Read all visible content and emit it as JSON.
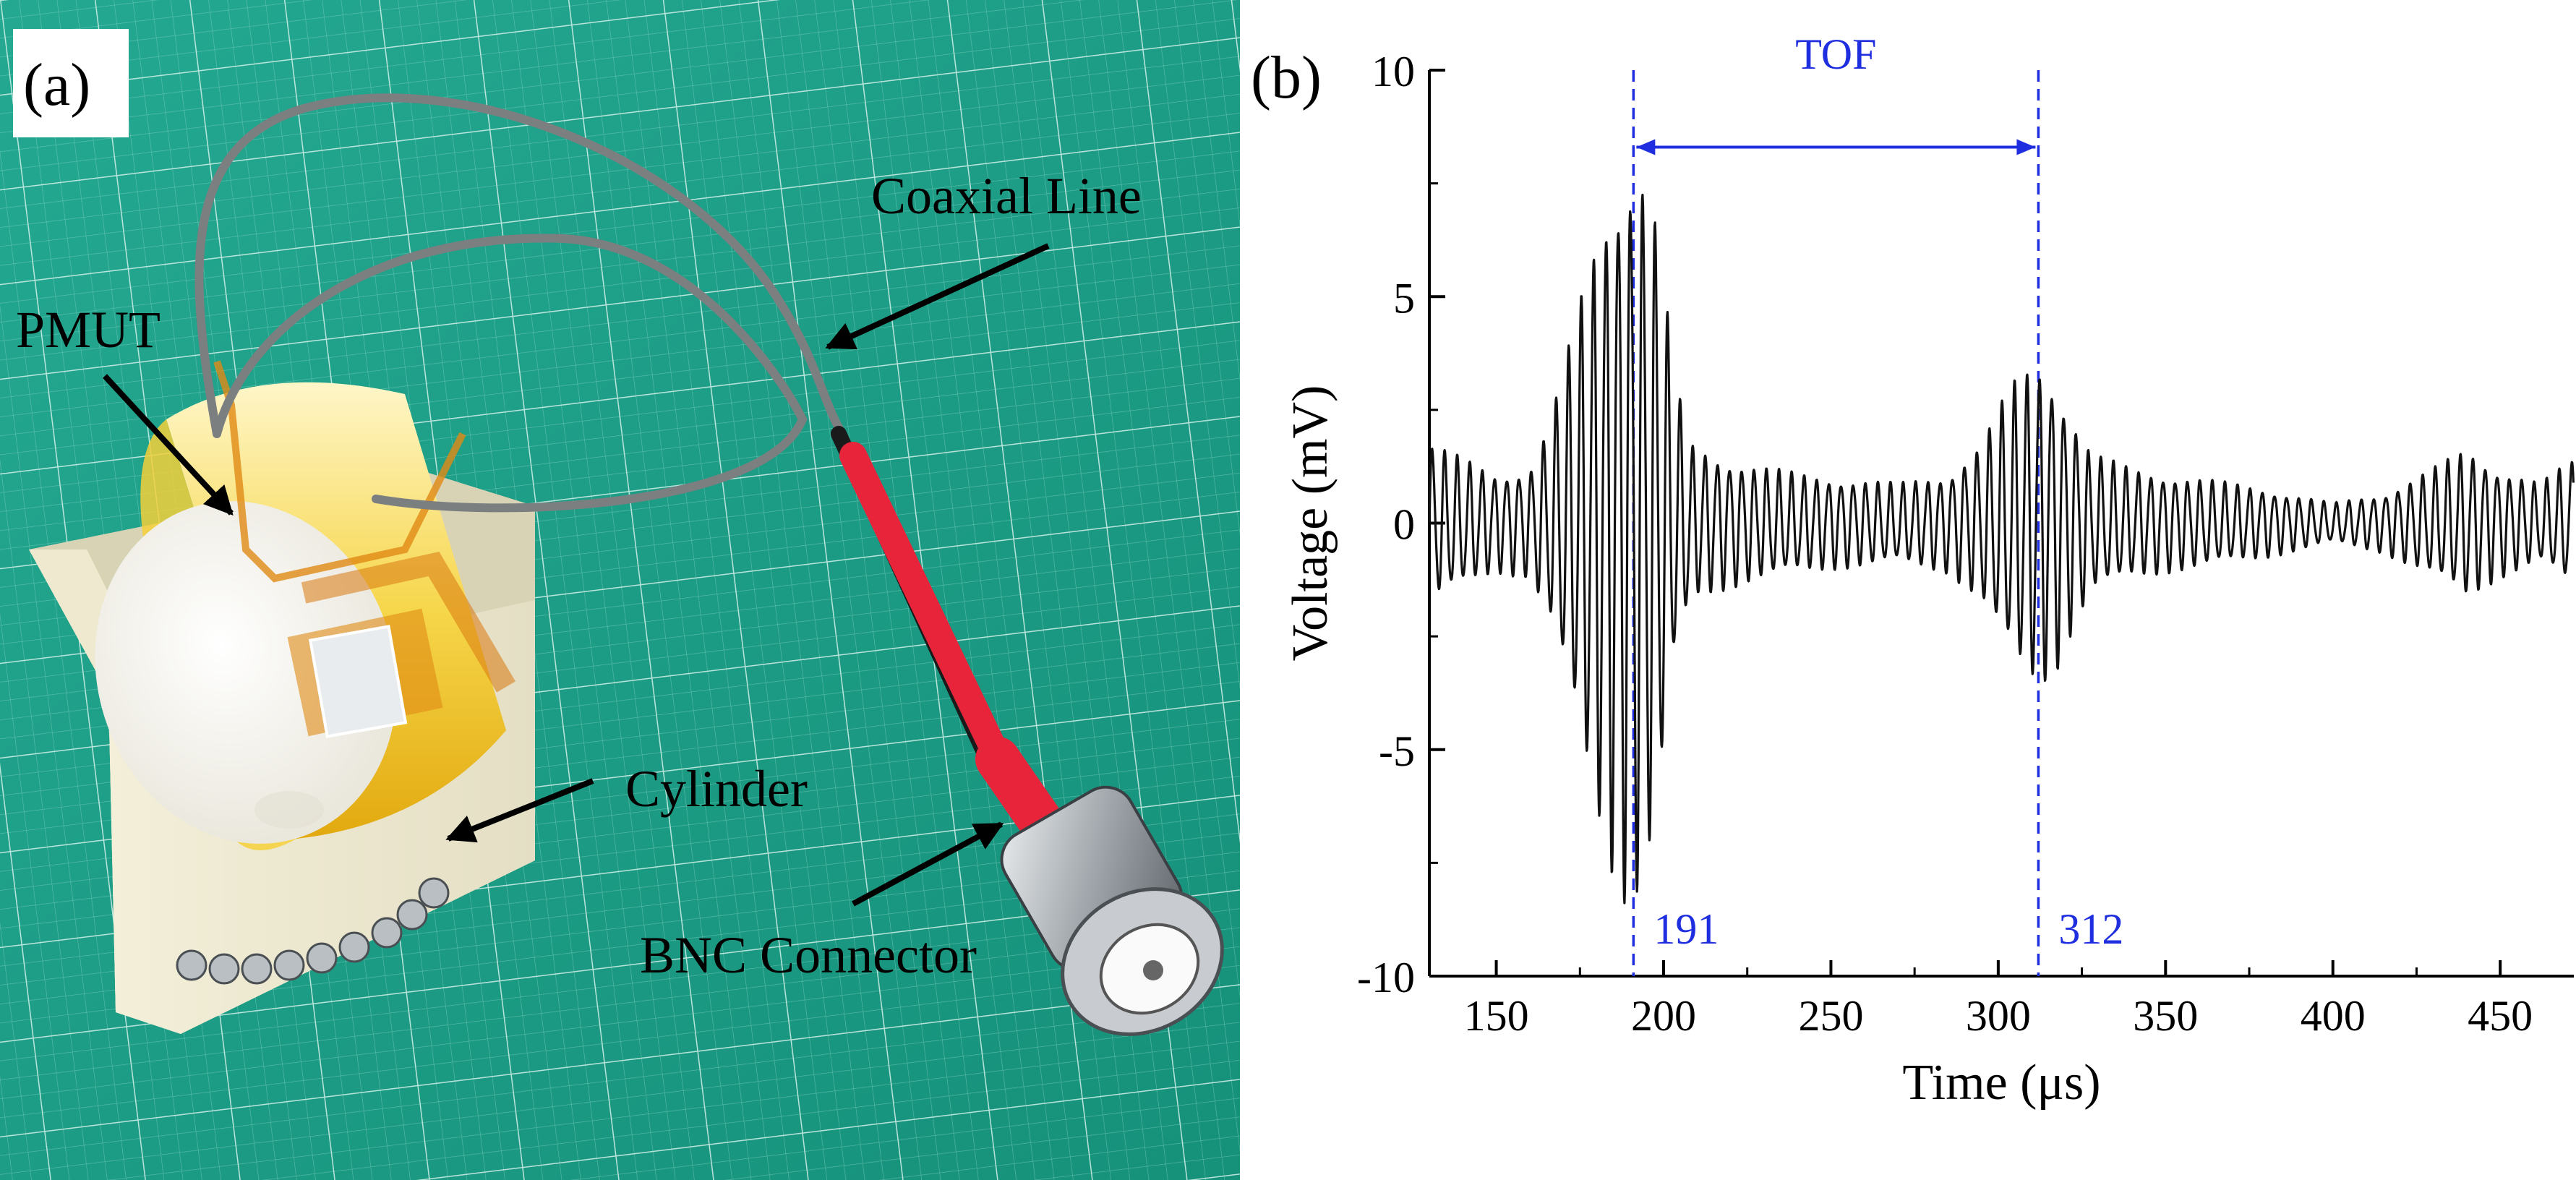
{
  "panel_a": {
    "label": "(a)",
    "annotations": {
      "coaxial": "Coaxial Line",
      "pmut": "PMUT",
      "cylinder": "Cylinder",
      "bnc": "BNC Connector"
    }
  },
  "panel_b": {
    "label": "(b)"
  },
  "colors": {
    "signal": "#111111",
    "marker": "#1f2fe0",
    "mat": "#1fa28a",
    "cable": "#7b7f80",
    "sleeve": "#e8243b",
    "tape": "#f2b210"
  },
  "icons": [
    "arrow-annotation-icon",
    "double-arrow-icon"
  ],
  "chart_data": {
    "type": "line",
    "title": "",
    "xlabel": "Time (μs)",
    "ylabel": "Voltage (mV)",
    "xlim": [
      130,
      472
    ],
    "ylim": [
      -10,
      10
    ],
    "xticks": [
      150,
      200,
      250,
      300,
      350,
      400,
      450
    ],
    "yticks": [
      -10,
      -5,
      0,
      5,
      10
    ],
    "grid": false,
    "signal_period_us": 3.7,
    "series": [
      {
        "envelope": [
          [
            130,
            1.6
          ],
          [
            140,
            1.3
          ],
          [
            150,
            1.0
          ],
          [
            160,
            1.1
          ],
          [
            166,
            2.0
          ],
          [
            172,
            3.6
          ],
          [
            178,
            5.4
          ],
          [
            184,
            6.9
          ],
          [
            188,
            7.5
          ],
          [
            191,
            7.6
          ],
          [
            195,
            7.2
          ],
          [
            199,
            5.6
          ],
          [
            203,
            3.0
          ],
          [
            208,
            1.6
          ],
          [
            215,
            1.4
          ],
          [
            225,
            1.2
          ],
          [
            240,
            1.0
          ],
          [
            255,
            0.9
          ],
          [
            270,
            0.8
          ],
          [
            285,
            1.0
          ],
          [
            295,
            1.6
          ],
          [
            301,
            2.4
          ],
          [
            306,
            3.0
          ],
          [
            312,
            3.3
          ],
          [
            317,
            3.0
          ],
          [
            322,
            2.2
          ],
          [
            328,
            1.4
          ],
          [
            340,
            1.1
          ],
          [
            360,
            0.9
          ],
          [
            380,
            0.7
          ],
          [
            400,
            0.4
          ],
          [
            415,
            0.6
          ],
          [
            430,
            1.1
          ],
          [
            440,
            1.5
          ],
          [
            450,
            1.1
          ],
          [
            462,
            0.8
          ],
          [
            472,
            1.3
          ]
        ]
      }
    ],
    "markers": [
      {
        "x": 191,
        "label": "191"
      },
      {
        "x": 312,
        "label": "312"
      }
    ],
    "tof": {
      "label": "TOF",
      "from": 191,
      "to": 312
    }
  }
}
